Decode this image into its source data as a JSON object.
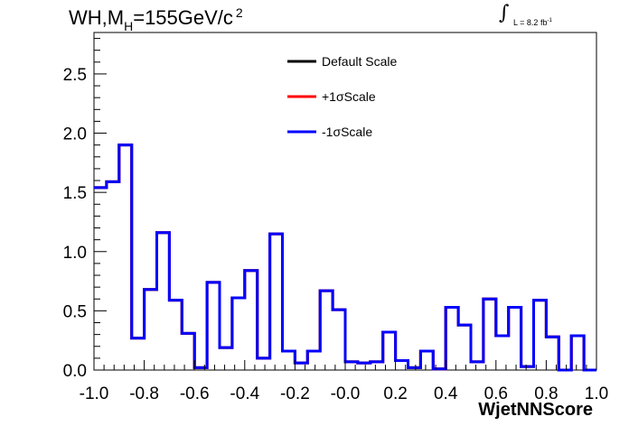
{
  "title_parts": {
    "main": "WH,M",
    "subscript": "H",
    "mass": "=155GeV/c",
    "superscript": "2"
  },
  "lumi_label": {
    "text": "L = 8.2 fb",
    "exponent": "-1"
  },
  "chart_data": {
    "type": "line",
    "style": "histogram-step",
    "xlabel": "WjetNNScore",
    "ylabel": "",
    "xlim": [
      -1.0,
      1.0
    ],
    "ylim": [
      0,
      2.85
    ],
    "grid": false,
    "legend_position": "top-center",
    "x_tick_labels": [
      "-1.0",
      "-0.8",
      "-0.6",
      "-0.4",
      "-0.2",
      "-0.0",
      "0.2",
      "0.4",
      "0.6",
      "0.8",
      "1.0"
    ],
    "x_tick_values": [
      -1.0,
      -0.8,
      -0.6,
      -0.4,
      -0.2,
      0.0,
      0.2,
      0.4,
      0.6,
      0.8,
      1.0
    ],
    "y_tick_labels": [
      "0.0",
      "0.5",
      "1.0",
      "1.5",
      "2.0",
      "2.5"
    ],
    "y_tick_values": [
      0.0,
      0.5,
      1.0,
      1.5,
      2.0,
      2.5
    ],
    "bin_edges": [
      -1.0,
      -0.95,
      -0.9,
      -0.85,
      -0.8,
      -0.75,
      -0.7,
      -0.65,
      -0.6,
      -0.55,
      -0.5,
      -0.45,
      -0.4,
      -0.35,
      -0.3,
      -0.25,
      -0.2,
      -0.15,
      -0.1,
      -0.05,
      0.0,
      0.05,
      0.1,
      0.15,
      0.2,
      0.25,
      0.3,
      0.35,
      0.4,
      0.45,
      0.5,
      0.55,
      0.6,
      0.65,
      0.7,
      0.75,
      0.8,
      0.85,
      0.9,
      0.95,
      1.0
    ],
    "series": [
      {
        "name": "Default Scale",
        "color": "#000000",
        "values": [
          1.54,
          1.59,
          1.9,
          0.27,
          0.68,
          1.16,
          0.59,
          0.31,
          0.02,
          0.74,
          0.19,
          0.61,
          0.84,
          0.1,
          1.15,
          0.16,
          0.06,
          0.16,
          0.67,
          0.51,
          0.07,
          0.06,
          0.07,
          0.32,
          0.08,
          0.02,
          0.16,
          0.01,
          0.53,
          0.38,
          0.07,
          0.6,
          0.29,
          0.53,
          0.03,
          0.59,
          0.28,
          0.0,
          0.29,
          0.0
        ]
      },
      {
        "name": "+1σScale",
        "color": "#ff0000",
        "values": [
          1.54,
          1.59,
          1.9,
          0.27,
          0.68,
          1.16,
          0.59,
          0.31,
          0.02,
          0.74,
          0.19,
          0.61,
          0.84,
          0.1,
          1.15,
          0.16,
          0.06,
          0.16,
          0.67,
          0.51,
          0.07,
          0.06,
          0.07,
          0.32,
          0.08,
          0.02,
          0.16,
          0.01,
          0.53,
          0.38,
          0.07,
          0.6,
          0.29,
          0.53,
          0.03,
          0.59,
          0.28,
          0.0,
          0.29,
          0.0
        ]
      },
      {
        "name": "-1σScale",
        "color": "#0000ff",
        "values": [
          1.54,
          1.59,
          1.9,
          0.27,
          0.68,
          1.16,
          0.59,
          0.31,
          0.02,
          0.74,
          0.19,
          0.61,
          0.84,
          0.1,
          1.15,
          0.16,
          0.06,
          0.16,
          0.67,
          0.51,
          0.07,
          0.06,
          0.07,
          0.32,
          0.08,
          0.02,
          0.16,
          0.01,
          0.53,
          0.38,
          0.07,
          0.6,
          0.29,
          0.53,
          0.03,
          0.59,
          0.28,
          0.0,
          0.29,
          0.0
        ]
      }
    ]
  }
}
